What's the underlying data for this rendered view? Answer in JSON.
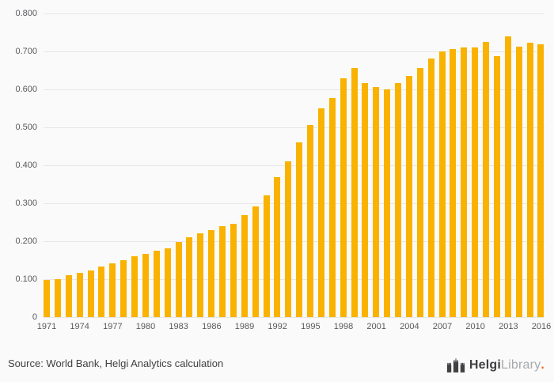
{
  "chart_data": {
    "type": "bar",
    "title": "",
    "xlabel": "",
    "ylabel": "",
    "x": [
      1971,
      1972,
      1973,
      1974,
      1975,
      1976,
      1977,
      1978,
      1979,
      1980,
      1981,
      1982,
      1983,
      1984,
      1985,
      1986,
      1987,
      1988,
      1989,
      1990,
      1991,
      1992,
      1993,
      1994,
      1995,
      1996,
      1997,
      1998,
      1999,
      2000,
      2001,
      2002,
      2003,
      2004,
      2005,
      2006,
      2007,
      2008,
      2009,
      2010,
      2011,
      2012,
      2013,
      2014,
      2015,
      2016
    ],
    "values": [
      0.097,
      0.101,
      0.11,
      0.116,
      0.122,
      0.134,
      0.141,
      0.151,
      0.16,
      0.166,
      0.174,
      0.182,
      0.198,
      0.21,
      0.221,
      0.23,
      0.239,
      0.245,
      0.268,
      0.292,
      0.321,
      0.368,
      0.411,
      0.461,
      0.506,
      0.551,
      0.577,
      0.63,
      0.656,
      0.616,
      0.606,
      0.6,
      0.617,
      0.636,
      0.656,
      0.681,
      0.7,
      0.706,
      0.71,
      0.71,
      0.726,
      0.688,
      0.74,
      0.712,
      0.722,
      0.718
    ],
    "ylim": [
      0,
      0.8
    ],
    "yticks": [
      {
        "value": 0.0,
        "label": "0"
      },
      {
        "value": 0.1,
        "label": "0.100"
      },
      {
        "value": 0.2,
        "label": "0.200"
      },
      {
        "value": 0.3,
        "label": "0.300"
      },
      {
        "value": 0.4,
        "label": "0.400"
      },
      {
        "value": 0.5,
        "label": "0.500"
      },
      {
        "value": 0.6,
        "label": "0.600"
      },
      {
        "value": 0.7,
        "label": "0.700"
      },
      {
        "value": 0.8,
        "label": "0.800"
      }
    ],
    "xticks": [
      1971,
      1974,
      1977,
      1980,
      1983,
      1986,
      1989,
      1992,
      1995,
      1998,
      2001,
      2004,
      2007,
      2010,
      2013,
      2016
    ],
    "grid": true,
    "legend": "none",
    "bar_color": "#F9B200",
    "background": "#FAFAFA"
  },
  "footer": {
    "source": "Source: World Bank, Helgi Analytics calculation",
    "logo": {
      "brand_dark": "Helgi",
      "brand_light": "Library",
      "dot": ".",
      "dot_color": "#F26522",
      "icon": "castle-icon"
    }
  },
  "colors": {
    "gridline": "#E7E7E7",
    "tick_text": "#58595B",
    "source_text": "#414042"
  }
}
